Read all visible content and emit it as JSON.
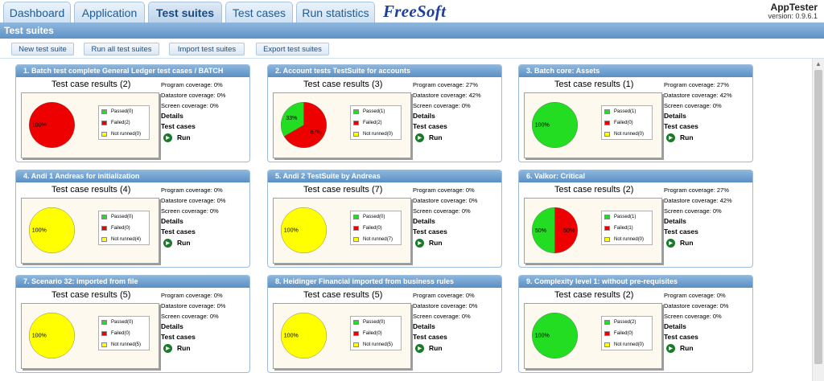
{
  "tabs": [
    {
      "label": "Dashboard"
    },
    {
      "label": "Application"
    },
    {
      "label": "Test suites",
      "active": true
    },
    {
      "label": "Test cases"
    },
    {
      "label": "Run statistics"
    }
  ],
  "brand": {
    "logo_text": "FreeSoft",
    "app_name": "AppTester",
    "version": "version: 0.9.6.1"
  },
  "section": {
    "title": "Test suites"
  },
  "toolbar": {
    "new": "New test suite",
    "run_all": "Run all test suites",
    "import": "Import test suites",
    "export": "Export test suites"
  },
  "colors": {
    "passed": "#22dd22",
    "failed": "#ee0000",
    "not_runned": "#ffff00",
    "header": "#5f93c6"
  },
  "icons": {
    "run": "play-circle-icon",
    "scroll_up": "scroll-up-arrow-icon"
  },
  "labels": {
    "program": "Program coverage:",
    "datastore": "Datastore coverage:",
    "screen": "Screen coverage:",
    "details": "Details",
    "test_cases": "Test cases",
    "run": "Run",
    "passed": "Passed",
    "failed": "Failed",
    "not_runned": "Not runned"
  },
  "suites": [
    {
      "header": "1. Batch test complete General Ledger test cases / BATCH",
      "results": "Test case results (2)",
      "passed": 0,
      "failed": 2,
      "not_runned": 0,
      "program": "0%",
      "datastore": "0%",
      "screen": "0%"
    },
    {
      "header": "2. Account tests TestSuite for accounts",
      "results": "Test case results (3)",
      "passed": 1,
      "failed": 2,
      "not_runned": 0,
      "program": "27%",
      "datastore": "42%",
      "screen": "0%"
    },
    {
      "header": "3. Batch core: Assets",
      "results": "Test case results (1)",
      "passed": 1,
      "failed": 0,
      "not_runned": 0,
      "program": "27%",
      "datastore": "42%",
      "screen": "0%"
    },
    {
      "header": "4. Andi 1 Andreas for initialization",
      "results": "Test case results (4)",
      "passed": 0,
      "failed": 0,
      "not_runned": 4,
      "program": "0%",
      "datastore": "0%",
      "screen": "0%"
    },
    {
      "header": "5. Andi 2 TestSuite by Andreas",
      "results": "Test case results (7)",
      "passed": 0,
      "failed": 0,
      "not_runned": 7,
      "program": "0%",
      "datastore": "0%",
      "screen": "0%"
    },
    {
      "header": "6. Valkor: Critical",
      "results": "Test case results (2)",
      "passed": 1,
      "failed": 1,
      "not_runned": 0,
      "program": "27%",
      "datastore": "42%",
      "screen": "0%"
    },
    {
      "header": "7. Scenario 32: imported from file",
      "results": "Test case results (5)",
      "passed": 0,
      "failed": 0,
      "not_runned": 5,
      "program": "0%",
      "datastore": "0%",
      "screen": "0%"
    },
    {
      "header": "8. Heidinger Financial imported from business rules",
      "results": "Test case results (5)",
      "passed": 0,
      "failed": 0,
      "not_runned": 5,
      "program": "0%",
      "datastore": "0%",
      "screen": "0%"
    },
    {
      "header": "9. Complexity level 1: without pre-requisites",
      "results": "Test case results (2)",
      "passed": 2,
      "failed": 0,
      "not_runned": 0,
      "program": "0%",
      "datastore": "0%",
      "screen": "0%"
    }
  ]
}
